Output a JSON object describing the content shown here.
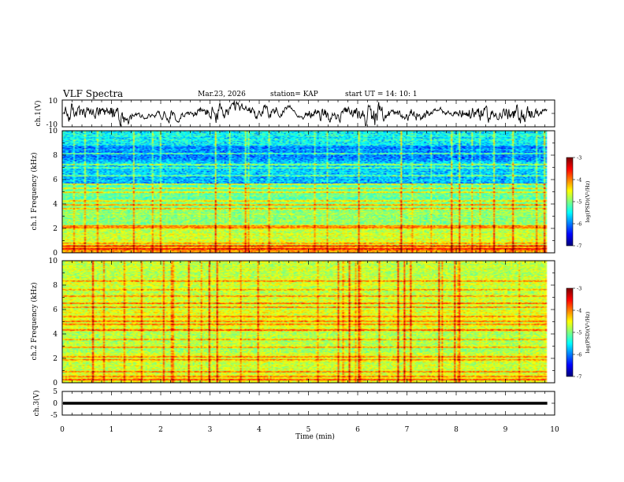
{
  "header": {
    "title": "VLF Spectra",
    "date": "Mar.23, 2026",
    "station": "station= KAP",
    "start": "start  UT =   14: 10: 1"
  },
  "chart_data": [
    {
      "type": "line",
      "name": "ch1-waveform",
      "ylabel": "ch.1(V)",
      "xlim": [
        0,
        10
      ],
      "ylim": [
        -10,
        10
      ],
      "y_tick_labels": [
        "10",
        "-10"
      ],
      "data_end_x": 9.85
    },
    {
      "type": "heatmap",
      "name": "ch1-spectrogram",
      "ylabel": "ch.1 Frequency (kHz)",
      "xlim": [
        0,
        10
      ],
      "ylim": [
        0,
        10
      ],
      "y_tick_labels": [
        "0",
        "2",
        "4",
        "6",
        "8",
        "10"
      ],
      "colorbar": {
        "label": "log(PSD)(V²/Hz)",
        "range": [
          -7,
          -3
        ],
        "tick_labels": [
          "-3",
          "-4",
          "-5",
          "-6",
          "-7"
        ]
      },
      "data_end_x": 9.85
    },
    {
      "type": "heatmap",
      "name": "ch2-spectrogram",
      "ylabel": "ch.2 Frequency (kHz)",
      "xlim": [
        0,
        10
      ],
      "ylim": [
        0,
        10
      ],
      "y_tick_labels": [
        "0",
        "2",
        "4",
        "6",
        "8",
        "10"
      ],
      "colorbar": {
        "label": "log(PSD)(V²/Hz)",
        "range": [
          -7,
          -3
        ],
        "tick_labels": [
          "-3",
          "-4",
          "-5",
          "-6",
          "-7"
        ]
      },
      "data_end_x": 9.85
    },
    {
      "type": "line",
      "name": "ch3-waveform",
      "ylabel": "ch.3(V)",
      "xlim": [
        0,
        10
      ],
      "ylim": [
        -5,
        5
      ],
      "y_tick_labels": [
        "5",
        "0",
        "-5"
      ],
      "xlabel": "Time  (min)",
      "x_tick_labels": [
        "0",
        "1",
        "2",
        "3",
        "4",
        "5",
        "6",
        "7",
        "8",
        "9",
        "10"
      ],
      "data_end_x": 9.85
    }
  ]
}
